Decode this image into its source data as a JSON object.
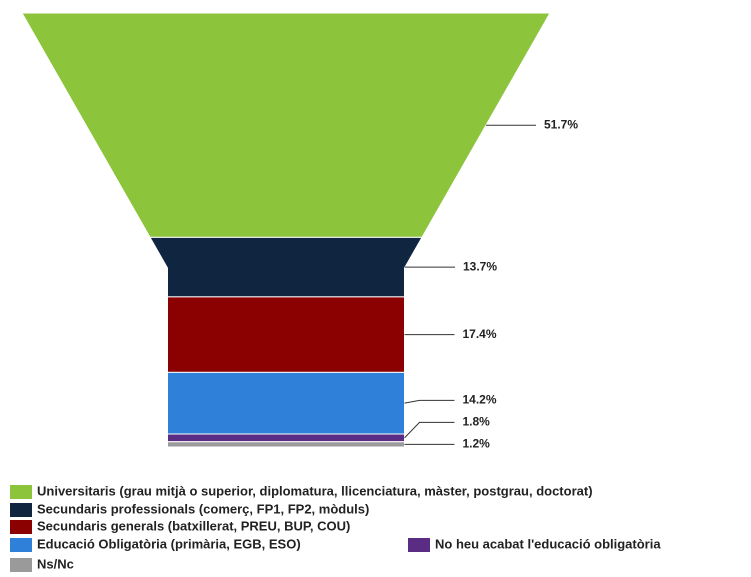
{
  "chart_data": {
    "type": "funnel",
    "categories": [
      "Universitaris (grau mitjà o superior, diplomatura, llicenciatura, màster, postgrau, doctorat)",
      "Secundaris professionals (comerç, FP1, FP2, mòduls)",
      "Secundaris generals (batxillerat, PREU, BUP, COU)",
      "Educació Obligatòria (primària, EGB, ESO)",
      "No heu acabat l'educació obligatòria",
      "Ns/Nc"
    ],
    "values": [
      51.7,
      13.7,
      17.4,
      14.2,
      1.8,
      1.2
    ],
    "value_labels": [
      "51.7%",
      "13.7%",
      "17.4%",
      "14.2%",
      "1.8%",
      "1.2%"
    ],
    "colors": [
      "#8cc43c",
      "#0f2540",
      "#8b0000",
      "#2f80d8",
      "#5b2c83",
      "#9a9a9a"
    ],
    "legend": "bottom"
  }
}
